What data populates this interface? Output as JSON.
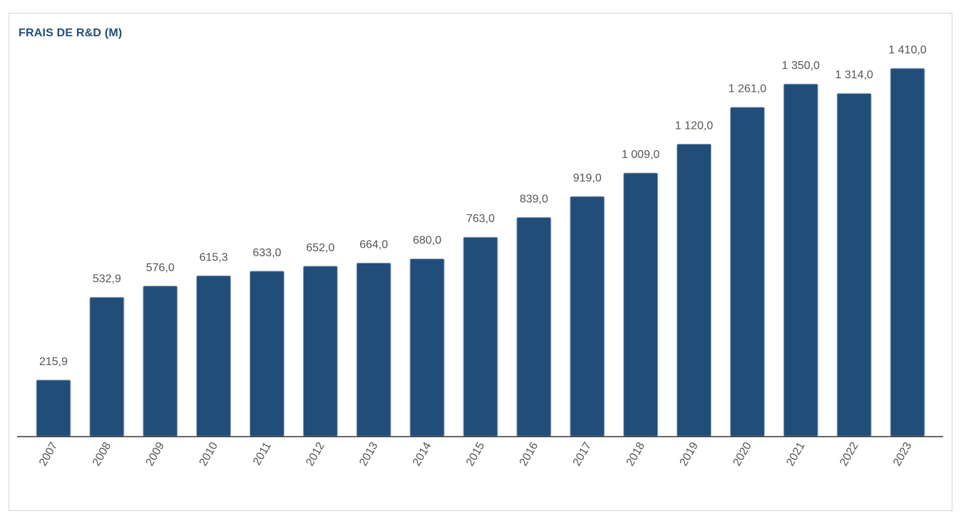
{
  "chart_data": {
    "type": "bar",
    "title": "FRAIS DE R&D (M)",
    "categories": [
      "2007",
      "2008",
      "2009",
      "2010",
      "2011",
      "2012",
      "2013",
      "2014",
      "2015",
      "2016",
      "2017",
      "2018",
      "2019",
      "2020",
      "2021",
      "2022",
      "2023"
    ],
    "values": [
      215.9,
      532.9,
      576.0,
      615.3,
      633.0,
      652.0,
      664.0,
      680.0,
      763.0,
      839.0,
      919.0,
      1009.0,
      1120.0,
      1261.0,
      1350.0,
      1314.0,
      1410.0
    ],
    "value_labels": [
      "215,9",
      "532,9",
      "576,0",
      "615,3",
      "633,0",
      "652,0",
      "664,0",
      "680,0",
      "763,0",
      "839,0",
      "919,0",
      "1 009,0",
      "1 120,0",
      "1 261,0",
      "1 350,0",
      "1 314,0",
      "1 410,0"
    ],
    "ylim": [
      0,
      1410
    ],
    "grid": false,
    "legend": "none",
    "colors": {
      "bar": "#214e79",
      "title": "#214e79",
      "axis": "#333333",
      "label": "#555555"
    }
  }
}
